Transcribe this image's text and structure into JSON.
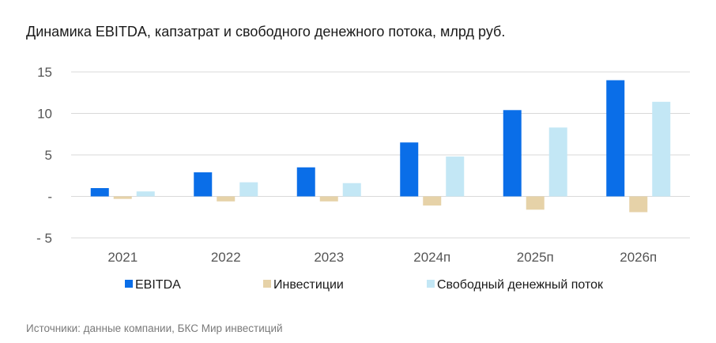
{
  "title": "Динамика EBITDA, капзатрат и свободного денежного потока, млрд руб.",
  "source": "Источники: данные компании, БКС Мир инвестиций",
  "chart_data": {
    "type": "bar",
    "title": "Динамика EBITDA, капзатрат и свободного денежного потока, млрд руб.",
    "categories": [
      "2021",
      "2022",
      "2023",
      "2024п",
      "2025п",
      "2026п"
    ],
    "series": [
      {
        "name": "EBITDA",
        "color": "#0a6ee8",
        "values": [
          1.0,
          2.9,
          3.5,
          6.5,
          10.4,
          14.0
        ]
      },
      {
        "name": "Инвестиции",
        "color": "#e6d2a8",
        "values": [
          -0.3,
          -0.6,
          -0.6,
          -1.1,
          -1.6,
          -1.9
        ]
      },
      {
        "name": "Свободный денежный поток",
        "color": "#c3e7f5",
        "values": [
          0.6,
          1.7,
          1.6,
          4.8,
          8.3,
          11.4
        ]
      }
    ],
    "ylim": [
      -5,
      15
    ],
    "yticks": [
      -5,
      0,
      5,
      10,
      15
    ],
    "ytick_labels": [
      "- 5",
      "-",
      "5",
      "10",
      "15"
    ],
    "grid": true,
    "legend": "bottom"
  }
}
